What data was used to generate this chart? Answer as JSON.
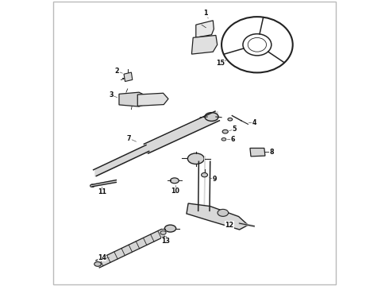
{
  "background_color": "#ffffff",
  "border_color": "#cccccc",
  "line_color": "#222222",
  "fig_width": 4.9,
  "fig_height": 3.6,
  "dpi": 100
}
